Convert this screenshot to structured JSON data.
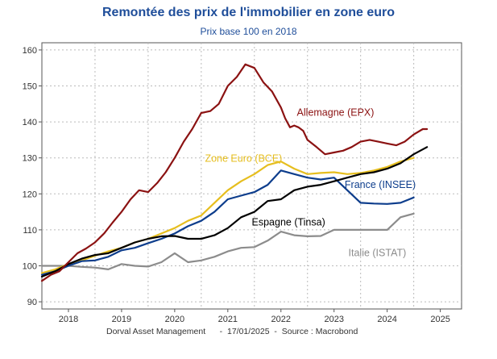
{
  "title": "Remontée des prix de l'immobilier en zone euro",
  "subtitle": "Prix base 100 en 2018",
  "footer": {
    "author": "Dorval Asset Management",
    "date": "17/01/2025",
    "source": "Source : Macrobond"
  },
  "chart_data": {
    "type": "line",
    "title": "Remontée des prix de l'immobilier en zone euro",
    "subtitle": "Prix base 100 en 2018",
    "xlabel": "",
    "ylabel": "",
    "xlim": [
      2017.5,
      2025.4
    ],
    "ylim": [
      88,
      162
    ],
    "y_ticks": [
      90,
      100,
      110,
      120,
      130,
      140,
      150,
      160
    ],
    "x_ticks": [
      2018,
      2019,
      2020,
      2021,
      2022,
      2023,
      2024,
      2025
    ],
    "grid": true,
    "legend": "inline labels",
    "series": [
      {
        "name": "Allemagne (EPX)",
        "color": "#8b1212",
        "x": [
          2017.5,
          2017.67,
          2017.83,
          2018.0,
          2018.17,
          2018.33,
          2018.5,
          2018.67,
          2018.83,
          2019.0,
          2019.17,
          2019.33,
          2019.5,
          2019.67,
          2019.83,
          2020.0,
          2020.17,
          2020.33,
          2020.5,
          2020.67,
          2020.83,
          2021.0,
          2021.17,
          2021.33,
          2021.5,
          2021.67,
          2021.83,
          2022.0,
          2022.08,
          2022.17,
          2022.25,
          2022.33,
          2022.42,
          2022.5,
          2022.67,
          2022.83,
          2023.0,
          2023.17,
          2023.33,
          2023.5,
          2023.67,
          2023.83,
          2024.0,
          2024.17,
          2024.33,
          2024.5,
          2024.67,
          2024.75
        ],
        "values": [
          95.8,
          97.5,
          98.5,
          101.0,
          103.5,
          104.8,
          106.5,
          109.0,
          112.0,
          115.0,
          118.5,
          121.0,
          120.5,
          123.0,
          126.0,
          130.0,
          134.5,
          138.0,
          142.5,
          143.0,
          145.0,
          150.0,
          152.5,
          156.0,
          155.0,
          151.0,
          148.5,
          144.0,
          141.0,
          138.5,
          139.0,
          138.5,
          137.5,
          135.0,
          133.0,
          131.0,
          131.5,
          132.0,
          133.0,
          134.5,
          135.0,
          134.5,
          134.0,
          133.5,
          134.5,
          136.5,
          138.0,
          138.0
        ]
      },
      {
        "name": "Zone Euro (BCE)",
        "color": "#e6be1e",
        "x": [
          2017.5,
          2017.75,
          2018.0,
          2018.25,
          2018.5,
          2018.75,
          2019.0,
          2019.25,
          2019.5,
          2019.75,
          2020.0,
          2020.25,
          2020.5,
          2020.75,
          2021.0,
          2021.25,
          2021.5,
          2021.75,
          2022.0,
          2022.25,
          2022.5,
          2022.75,
          2023.0,
          2023.25,
          2023.5,
          2023.75,
          2024.0,
          2024.25,
          2024.5
        ],
        "values": [
          98.0,
          99.0,
          100.5,
          101.5,
          102.8,
          104.0,
          105.0,
          106.5,
          107.5,
          109.0,
          110.5,
          112.5,
          114.0,
          117.5,
          121.0,
          123.5,
          125.5,
          128.0,
          129.0,
          127.0,
          125.5,
          125.8,
          126.0,
          125.5,
          125.8,
          126.5,
          127.5,
          129.0,
          130.0
        ]
      },
      {
        "name": "France (INSEE)",
        "color": "#0d3d8c",
        "x": [
          2017.5,
          2017.75,
          2018.0,
          2018.25,
          2018.5,
          2018.75,
          2019.0,
          2019.25,
          2019.5,
          2019.75,
          2020.0,
          2020.25,
          2020.5,
          2020.75,
          2021.0,
          2021.25,
          2021.5,
          2021.75,
          2022.0,
          2022.25,
          2022.5,
          2022.75,
          2023.0,
          2023.25,
          2023.5,
          2023.75,
          2024.0,
          2024.25,
          2024.5
        ],
        "values": [
          97.5,
          98.5,
          100.0,
          101.3,
          101.5,
          102.5,
          104.3,
          105.0,
          106.3,
          107.5,
          109.0,
          111.0,
          112.5,
          115.0,
          118.5,
          119.5,
          120.5,
          122.5,
          126.5,
          125.5,
          124.5,
          124.0,
          124.5,
          121.0,
          117.5,
          117.3,
          117.2,
          117.5,
          119.0
        ]
      },
      {
        "name": "Espagne (Tinsa)",
        "color": "#000000",
        "x": [
          2017.5,
          2017.75,
          2018.0,
          2018.25,
          2018.5,
          2018.75,
          2019.0,
          2019.25,
          2019.5,
          2019.75,
          2020.0,
          2020.25,
          2020.5,
          2020.75,
          2021.0,
          2021.25,
          2021.5,
          2021.75,
          2022.0,
          2022.25,
          2022.5,
          2022.75,
          2023.0,
          2023.25,
          2023.5,
          2023.75,
          2024.0,
          2024.25,
          2024.5,
          2024.75
        ],
        "values": [
          97.0,
          98.5,
          100.5,
          102.0,
          103.0,
          103.5,
          105.0,
          106.5,
          107.5,
          108.2,
          108.3,
          107.5,
          107.5,
          108.5,
          110.5,
          113.5,
          115.0,
          118.0,
          118.5,
          121.0,
          122.0,
          122.5,
          123.5,
          124.5,
          125.5,
          126.0,
          127.0,
          128.5,
          131.0,
          133.0
        ]
      },
      {
        "name": "Italie (ISTAT)",
        "color": "#8c8c8c",
        "x": [
          2017.5,
          2017.75,
          2018.0,
          2018.25,
          2018.5,
          2018.75,
          2019.0,
          2019.25,
          2019.5,
          2019.75,
          2020.0,
          2020.25,
          2020.5,
          2020.75,
          2021.0,
          2021.25,
          2021.5,
          2021.75,
          2022.0,
          2022.25,
          2022.5,
          2022.75,
          2023.0,
          2023.25,
          2023.5,
          2023.75,
          2024.0,
          2024.25,
          2024.5
        ],
        "values": [
          100.0,
          100.0,
          100.0,
          99.7,
          99.5,
          99.0,
          100.5,
          100.0,
          99.8,
          101.0,
          103.5,
          101.0,
          101.5,
          102.5,
          104.0,
          105.0,
          105.2,
          107.0,
          109.5,
          108.5,
          108.2,
          108.3,
          110.0,
          110.0,
          110.0,
          110.0,
          110.0,
          113.5,
          114.5
        ]
      }
    ]
  }
}
